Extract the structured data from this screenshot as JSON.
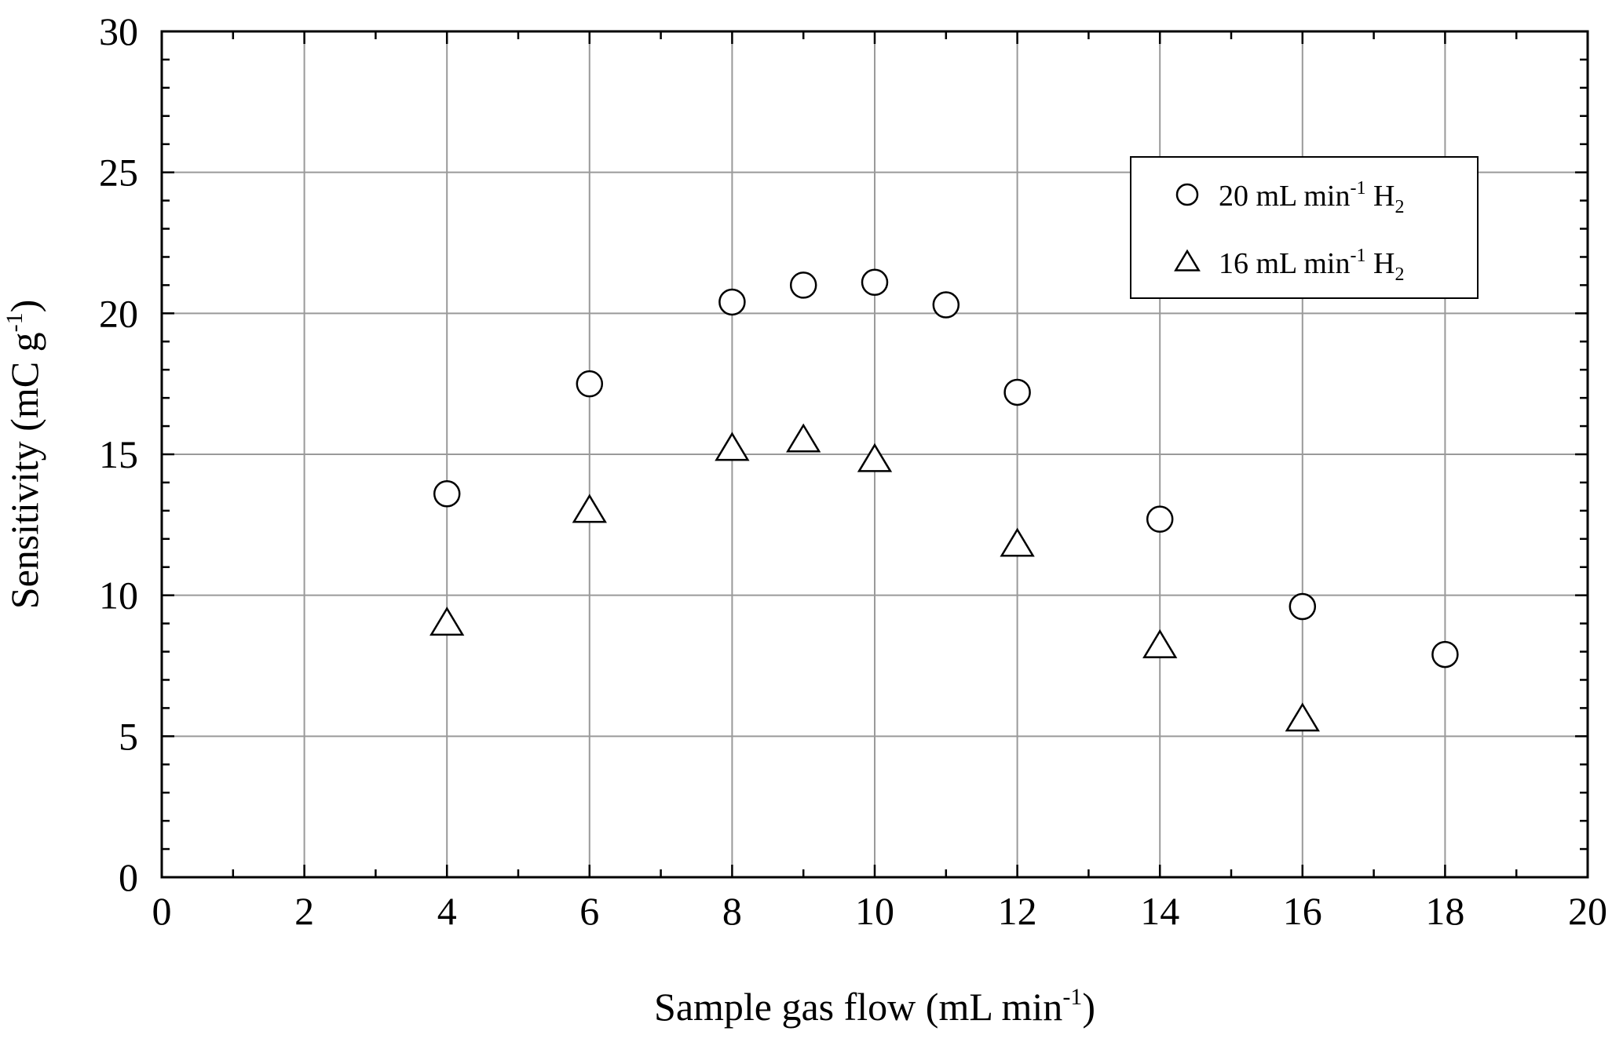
{
  "chart_data": {
    "type": "scatter",
    "xlabel": "Sample gas flow (mL min⁻¹)",
    "xlabel_parts": {
      "main": "Sample gas flow (mL min",
      "sup": "-1",
      "tail": ")"
    },
    "ylabel": "Sensitivity (mC g⁻¹)",
    "ylabel_parts": {
      "main": "Sensitivity (mC g",
      "sup": "-1",
      "tail": ")"
    },
    "xlim": [
      0,
      20
    ],
    "ylim": [
      0,
      30
    ],
    "x_ticks": [
      0,
      2,
      4,
      6,
      8,
      10,
      12,
      14,
      16,
      18,
      20
    ],
    "y_ticks": [
      0,
      5,
      10,
      15,
      20,
      25,
      30
    ],
    "x_tick_labels": [
      "0",
      "2",
      "4",
      "6",
      "8",
      "10",
      "12",
      "14",
      "16",
      "18",
      "20"
    ],
    "y_tick_labels": [
      "0",
      "5",
      "10",
      "15",
      "20",
      "25",
      "30"
    ],
    "grid": true,
    "legend_position": "top-right",
    "series": [
      {
        "name": "20 mL min⁻¹ H₂",
        "name_parts": {
          "a": "20 mL min",
          "sup": "-1",
          "b": " H",
          "sub": "2"
        },
        "marker": "circle",
        "x": [
          4,
          6,
          8,
          9,
          10,
          11,
          12,
          14,
          16,
          18
        ],
        "y": [
          13.6,
          17.5,
          20.4,
          21.0,
          21.1,
          20.3,
          17.2,
          12.7,
          9.6,
          7.9
        ]
      },
      {
        "name": "16 mL min⁻¹ H₂",
        "name_parts": {
          "a": "16 mL min",
          "sup": "-1",
          "b": " H",
          "sub": "2"
        },
        "marker": "triangle",
        "x": [
          4,
          6,
          8,
          9,
          10,
          12,
          14,
          16
        ],
        "y": [
          9.0,
          13.0,
          15.2,
          15.5,
          14.8,
          11.8,
          8.2,
          5.6
        ]
      }
    ]
  }
}
